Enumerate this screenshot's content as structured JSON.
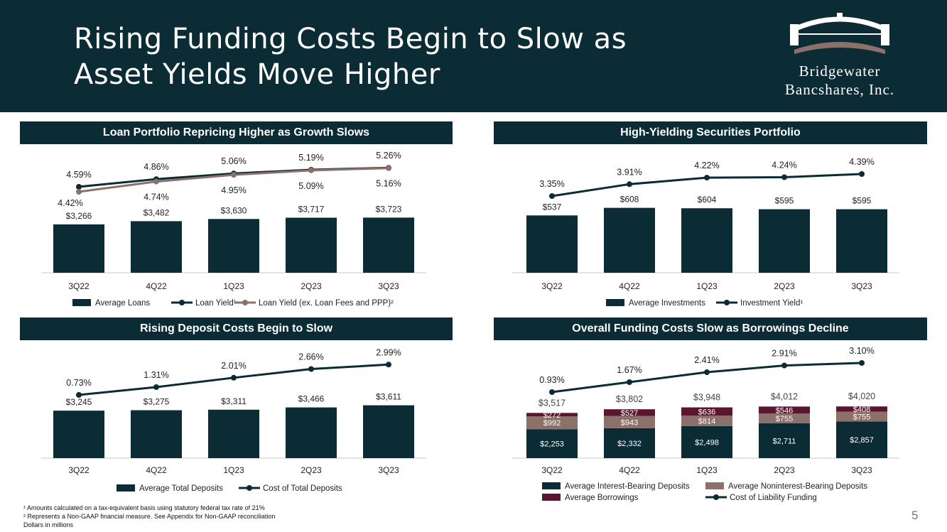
{
  "title": {
    "line1": "Rising Funding Costs Begin to Slow as",
    "line2": "Asset Yields Move Higher"
  },
  "logo": {
    "line1": "Bridgewater",
    "line2": "Bancshares, Inc."
  },
  "page_number": "5",
  "footnotes": [
    "¹ Amounts calculated on a tax-equivalent basis using statutory federal tax rate of 21%",
    "² Represents a Non-GAAP financial measure. See Appendix for Non-GAAP reconciliation",
    "Dollars in millions"
  ],
  "colors": {
    "navy": "#0b2c35",
    "taupe": "#8c706a",
    "maroon": "#5a1530",
    "white": "#ffffff"
  },
  "chart_data": [
    {
      "id": "loan",
      "type": "bar+line",
      "title": "Loan Portfolio Repricing Higher as Growth Slows",
      "categories": [
        "3Q22",
        "4Q22",
        "1Q23",
        "2Q23",
        "3Q23"
      ],
      "bars": [
        {
          "name": "Average Loans",
          "values": [
            3266,
            3482,
            3630,
            3717,
            3723
          ],
          "labels": [
            "$3,266",
            "$3,482",
            "$3,630",
            "$3,717",
            "$3,723"
          ]
        }
      ],
      "lines": [
        {
          "name": "Loan Yield¹",
          "values": [
            4.59,
            4.86,
            5.06,
            5.19,
            5.26
          ],
          "labels": [
            "4.59%",
            "4.86%",
            "5.06%",
            "5.19%",
            "5.26%"
          ]
        },
        {
          "name": "Loan Yield (ex. Loan Fees and PPP)²",
          "values": [
            4.42,
            4.74,
            4.95,
            5.09,
            5.16
          ],
          "labels": [
            "4.42%",
            "4.74%",
            "4.95%",
            "5.09%",
            "5.16%"
          ]
        }
      ],
      "legend": [
        "Average Loans",
        "Loan Yield¹",
        "Loan Yield (ex. Loan Fees and PPP)²"
      ]
    },
    {
      "id": "securities",
      "type": "bar+line",
      "title": "High-Yielding Securities Portfolio",
      "categories": [
        "3Q22",
        "4Q22",
        "1Q23",
        "2Q23",
        "3Q23"
      ],
      "bars": [
        {
          "name": "Average Investments",
          "values": [
            537,
            608,
            604,
            595,
            595
          ],
          "labels": [
            "$537",
            "$608",
            "$604",
            "$595",
            "$595"
          ]
        }
      ],
      "lines": [
        {
          "name": "Investment Yield¹",
          "values": [
            3.35,
            3.91,
            4.22,
            4.24,
            4.39
          ],
          "labels": [
            "3.35%",
            "3.91%",
            "4.22%",
            "4.24%",
            "4.39%"
          ]
        }
      ],
      "legend": [
        "Average Investments",
        "Investment Yield¹"
      ]
    },
    {
      "id": "deposits",
      "type": "bar+line",
      "title": "Rising Deposit Costs Begin to Slow",
      "categories": [
        "3Q22",
        "4Q22",
        "1Q23",
        "2Q23",
        "3Q23"
      ],
      "bars": [
        {
          "name": "Average Total Deposits",
          "values": [
            3245,
            3275,
            3311,
            3466,
            3611
          ],
          "labels": [
            "$3,245",
            "$3,275",
            "$3,311",
            "$3,466",
            "$3,611"
          ]
        }
      ],
      "lines": [
        {
          "name": "Cost of Total Deposits",
          "values": [
            0.73,
            1.31,
            2.01,
            2.66,
            2.99
          ],
          "labels": [
            "0.73%",
            "1.31%",
            "2.01%",
            "2.66%",
            "2.99%"
          ]
        }
      ],
      "legend": [
        "Average Total Deposits",
        "Cost of Total Deposits"
      ]
    },
    {
      "id": "funding",
      "type": "stacked-bar+line",
      "title": "Overall Funding Costs Slow as Borrowings Decline",
      "categories": [
        "3Q22",
        "4Q22",
        "1Q23",
        "2Q23",
        "3Q23"
      ],
      "totals": [
        "$3,517",
        "$3,802",
        "$3,948",
        "$4,012",
        "$4,020"
      ],
      "series": [
        {
          "name": "Average Interest-Bearing Deposits",
          "values": [
            2253,
            2332,
            2498,
            2711,
            2857
          ],
          "labels": [
            "$2,253",
            "$2,332",
            "$2,498",
            "$2,711",
            "$2,857"
          ]
        },
        {
          "name": "Average Noninterest-Bearing Deposits",
          "values": [
            992,
            943,
            814,
            755,
            755
          ],
          "labels": [
            "$992",
            "$943",
            "$814",
            "$755",
            "$755"
          ]
        },
        {
          "name": "Average Borrowings",
          "values": [
            272,
            527,
            636,
            546,
            408
          ],
          "labels": [
            "$272",
            "$527",
            "$636",
            "$546",
            "$408"
          ]
        }
      ],
      "lines": [
        {
          "name": "Cost of Liability Funding",
          "values": [
            0.93,
            1.67,
            2.41,
            2.91,
            3.1
          ],
          "labels": [
            "0.93%",
            "1.67%",
            "2.41%",
            "2.91%",
            "3.10%"
          ]
        }
      ],
      "legend": [
        "Average Interest-Bearing Deposits",
        "Average Noninterest-Bearing Deposits",
        "Average Borrowings",
        "Cost of Liability Funding"
      ]
    }
  ]
}
